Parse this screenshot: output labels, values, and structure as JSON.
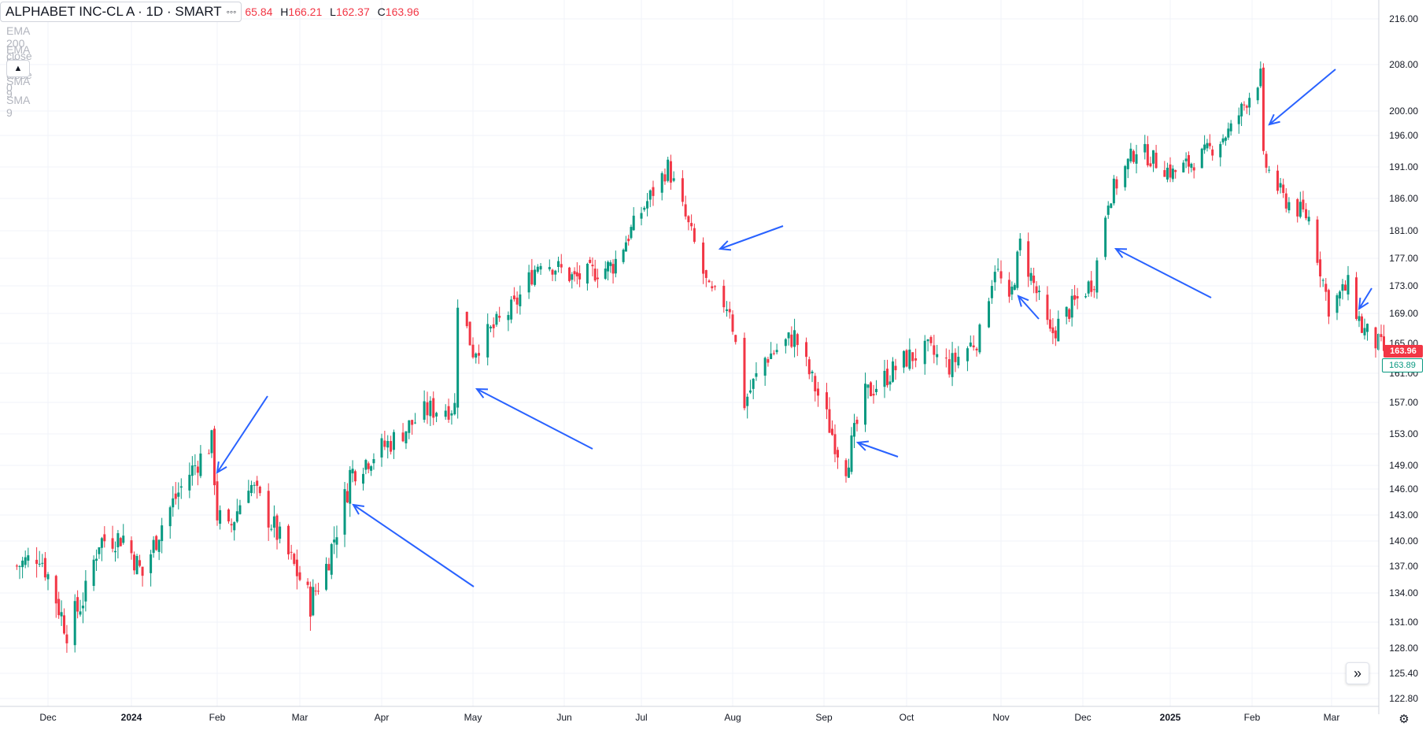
{
  "header": {
    "symbol": "ALPHABET INC-CL A · 1D · SMART",
    "dots": "◦◦◦",
    "ohlc": [
      {
        "label": "",
        "value": "65.84"
      },
      {
        "label": "H",
        "value": "166.21"
      },
      {
        "label": "L",
        "value": "162.37"
      },
      {
        "label": "C",
        "value": "163.96"
      }
    ]
  },
  "indicators": [
    "EMA 200 close 0 SMA 9",
    "EMA 50 close 0 SMA 9"
  ],
  "controls": {
    "collapse_icon": "chevron-up-icon",
    "goto_icon": "double-chevron-right-icon",
    "settings_icon": "gear-icon"
  },
  "badges": {
    "last_price": "163.96",
    "second_price": "163.89"
  },
  "colors": {
    "up": "#089981",
    "down": "#f23645",
    "annotation": "#2962ff",
    "grid": "#f0f3fa"
  },
  "chart_data": {
    "type": "candlestick",
    "title": "ALPHABET INC-CL A · 1D · SMART",
    "y_ticks": [
      "216.00",
      "208.00",
      "200.00",
      "196.00",
      "191.00",
      "186.00",
      "181.00",
      "177.00",
      "173.00",
      "169.00",
      "165.00",
      "161.00",
      "157.00",
      "153.00",
      "149.00",
      "146.00",
      "143.00",
      "140.00",
      "137.00",
      "134.00",
      "131.00",
      "128.00",
      "125.40",
      "122.80"
    ],
    "x_ticks": [
      "Dec",
      "2024",
      "Feb",
      "Mar",
      "Apr",
      "May",
      "Jun",
      "Jul",
      "Aug",
      "Sep",
      "Oct",
      "Nov",
      "Dec",
      "2025",
      "Feb",
      "Mar"
    ],
    "ylim": [
      122.8,
      216.0
    ],
    "x_range": [
      "2023-11-20",
      "2025-03-20"
    ],
    "grid": true,
    "anchors": [
      [
        "2023-11-20",
        137.0
      ],
      [
        "2023-11-28",
        138.5
      ],
      [
        "2023-12-08",
        130.0
      ],
      [
        "2023-12-15",
        134.0
      ],
      [
        "2023-12-20",
        140.0
      ],
      [
        "2023-12-29",
        140.5
      ],
      [
        "2024-01-05",
        136.0
      ],
      [
        "2024-01-12",
        142.0
      ],
      [
        "2024-01-22",
        148.0
      ],
      [
        "2024-01-30",
        152.0
      ],
      [
        "2024-02-01",
        143.0
      ],
      [
        "2024-02-05",
        141.0
      ],
      [
        "2024-02-12",
        147.0
      ],
      [
        "2024-02-21",
        141.5
      ],
      [
        "2024-03-05",
        133.0
      ],
      [
        "2024-03-11",
        137.0
      ],
      [
        "2024-03-19",
        146.0
      ],
      [
        "2024-03-20",
        148.0
      ],
      [
        "2024-04-04",
        152.0
      ],
      [
        "2024-04-16",
        156.0
      ],
      [
        "2024-04-25",
        156.5
      ],
      [
        "2024-04-26",
        171.0
      ],
      [
        "2024-05-01",
        164.0
      ],
      [
        "2024-05-15",
        170.0
      ],
      [
        "2024-05-24",
        177.0
      ],
      [
        "2024-06-05",
        174.0
      ],
      [
        "2024-06-20",
        176.0
      ],
      [
        "2024-07-01",
        184.0
      ],
      [
        "2024-07-10",
        191.0
      ],
      [
        "2024-07-19",
        179.0
      ],
      [
        "2024-07-24",
        172.0
      ],
      [
        "2024-07-31",
        170.0
      ],
      [
        "2024-08-05",
        157.0
      ],
      [
        "2024-08-12",
        163.0
      ],
      [
        "2024-08-22",
        166.0
      ],
      [
        "2024-09-06",
        151.0
      ],
      [
        "2024-09-09",
        149.0
      ],
      [
        "2024-09-16",
        158.0
      ],
      [
        "2024-10-01",
        163.0
      ],
      [
        "2024-10-08",
        164.0
      ],
      [
        "2024-10-15",
        162.0
      ],
      [
        "2024-10-25",
        166.0
      ],
      [
        "2024-10-30",
        176.0
      ],
      [
        "2024-11-04",
        170.0
      ],
      [
        "2024-11-08",
        179.0
      ],
      [
        "2024-11-14",
        172.0
      ],
      [
        "2024-11-19",
        166.0
      ],
      [
        "2024-11-27",
        170.0
      ],
      [
        "2024-12-05",
        174.0
      ],
      [
        "2024-12-10",
        186.0
      ],
      [
        "2024-12-20",
        194.0
      ],
      [
        "2025-01-02",
        190.0
      ],
      [
        "2025-01-14",
        193.0
      ],
      [
        "2025-01-24",
        197.0
      ],
      [
        "2025-02-04",
        206.0
      ],
      [
        "2025-02-05",
        192.0
      ],
      [
        "2025-02-12",
        186.0
      ],
      [
        "2025-02-21",
        183.0
      ],
      [
        "2025-02-28",
        170.0
      ],
      [
        "2025-03-07",
        173.0
      ],
      [
        "2025-03-12",
        167.0
      ],
      [
        "2025-03-20",
        164.0
      ]
    ]
  }
}
